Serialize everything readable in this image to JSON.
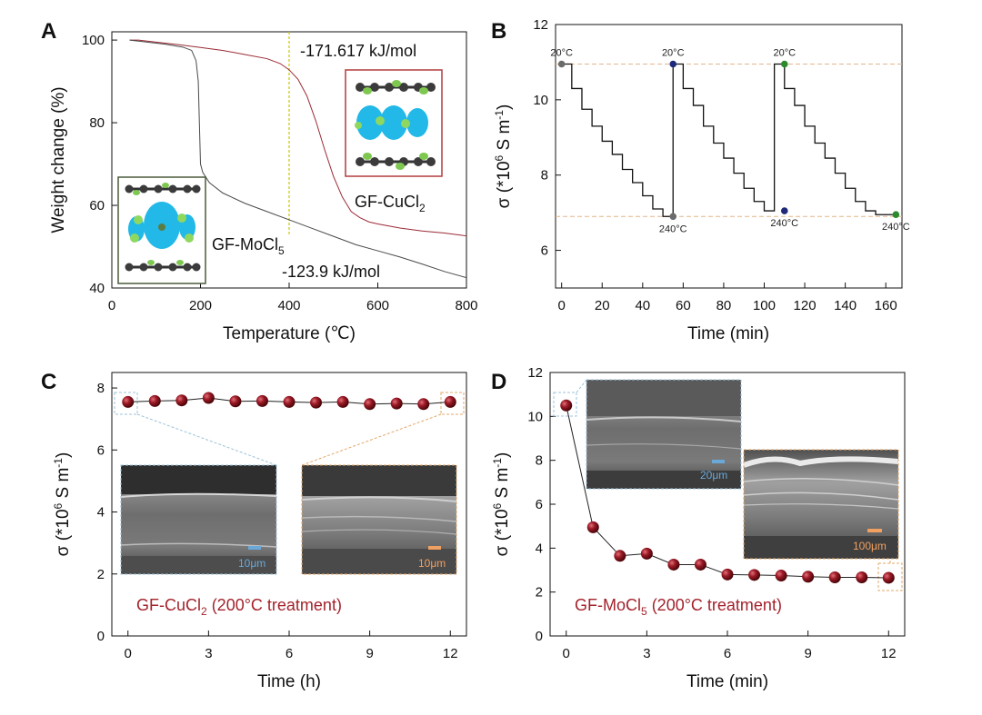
{
  "chart_data": [
    {
      "panel": "A",
      "type": "line",
      "xlabel": "Temperature (℃)",
      "ylabel": "Weight change (%)",
      "xlim": [
        0,
        800
      ],
      "ylim": [
        40,
        102
      ],
      "xticks": [
        0,
        200,
        400,
        600,
        800
      ],
      "yticks": [
        40,
        60,
        80,
        100
      ],
      "series": [
        {
          "name": "GF-CuCl2",
          "color": "#9b2a35",
          "x": [
            40,
            60,
            100,
            150,
            200,
            250,
            300,
            350,
            380,
            400,
            420,
            440,
            460,
            480,
            500,
            520,
            540,
            560,
            580,
            600,
            650,
            700,
            750,
            800
          ],
          "y": [
            100,
            100,
            99.5,
            98.9,
            98.2,
            97.5,
            96.5,
            95.5,
            94.3,
            92.8,
            90.5,
            86.5,
            80.5,
            73.5,
            67,
            62,
            58.5,
            57,
            56,
            55.5,
            54.5,
            53.8,
            53.3,
            52.6
          ]
        },
        {
          "name": "GF-MoCl5",
          "color": "#4a4a4a",
          "x": [
            40,
            80,
            120,
            160,
            180,
            190,
            195,
            200,
            205,
            220,
            250,
            300,
            350,
            400,
            450,
            500,
            550,
            600,
            650,
            700,
            750,
            800
          ],
          "y": [
            100,
            99.5,
            99,
            98.3,
            97.5,
            95,
            90,
            70,
            68,
            65.5,
            63,
            60.5,
            58.5,
            56.5,
            54.5,
            52.5,
            50.5,
            49,
            47.5,
            45.8,
            44,
            42.5
          ]
        }
      ],
      "vline": {
        "x": 400,
        "color": "#c8c800"
      },
      "annotations": {
        "cu_energy": "-171.617 kJ/mol",
        "mo_energy": "-123.9 kJ/mol",
        "cu_label_main": "GF-CuCl",
        "cu_label_sub": "2",
        "mo_label_main": "GF-MoCl",
        "mo_label_sub": "5"
      }
    },
    {
      "panel": "B",
      "type": "line",
      "xlabel": "Time (min)",
      "ylabel_main": "σ (*10",
      "ylabel_sup": "6",
      "ylabel_tail": " S m",
      "ylabel_sup2": "-1",
      "ylabel_end": ")",
      "xlim": [
        -3,
        168
      ],
      "ylim": [
        5,
        12
      ],
      "xticks": [
        0,
        20,
        40,
        60,
        80,
        100,
        120,
        140,
        160
      ],
      "yticks": [
        6,
        8,
        10,
        12
      ],
      "ref_lines": [
        {
          "y": 10.95,
          "color": "#e3b58c"
        },
        {
          "y": 6.9,
          "color": "#e3b58c"
        }
      ],
      "step_series": {
        "color": "#111111",
        "x": [
          0,
          5,
          5,
          10,
          10,
          15,
          15,
          20,
          20,
          25,
          25,
          30,
          30,
          35,
          35,
          40,
          40,
          45,
          45,
          50,
          50,
          55,
          55,
          60,
          60,
          65,
          65,
          70,
          70,
          75,
          75,
          80,
          80,
          85,
          85,
          90,
          90,
          95,
          95,
          100,
          100,
          105,
          105,
          110,
          110,
          115,
          115,
          120,
          120,
          125,
          125,
          130,
          130,
          135,
          135,
          140,
          140,
          145,
          145,
          150,
          150,
          155,
          155,
          160,
          160,
          165
        ],
        "y": [
          10.95,
          10.95,
          10.3,
          10.3,
          9.75,
          9.75,
          9.3,
          9.3,
          8.9,
          8.9,
          8.55,
          8.55,
          8.15,
          8.15,
          7.8,
          7.8,
          7.45,
          7.45,
          7.1,
          7.1,
          6.9,
          6.9,
          10.95,
          10.95,
          10.3,
          10.3,
          9.85,
          9.85,
          9.3,
          9.3,
          8.85,
          8.85,
          8.45,
          8.45,
          8.05,
          8.05,
          7.65,
          7.65,
          7.3,
          7.3,
          7.05,
          7.05,
          10.95,
          10.95,
          10.3,
          10.3,
          9.85,
          9.85,
          9.3,
          9.3,
          8.85,
          8.85,
          8.45,
          8.45,
          8.05,
          8.05,
          7.65,
          7.65,
          7.3,
          7.3,
          7.05,
          7.05,
          6.95,
          6.95,
          6.95,
          6.95
        ]
      },
      "markers": [
        {
          "x": 0,
          "y": 10.95,
          "color": "#6b6b6b",
          "label": "20°C"
        },
        {
          "x": 55,
          "y": 6.9,
          "color": "#6b6b6b",
          "label": "240°C"
        },
        {
          "x": 55,
          "y": 10.95,
          "color": "#1d2a7a",
          "label": "20°C"
        },
        {
          "x": 110,
          "y": 7.05,
          "color": "#1d2a7a",
          "label": "240°C"
        },
        {
          "x": 110,
          "y": 10.95,
          "color": "#2b8a2b",
          "label": "20°C"
        },
        {
          "x": 165,
          "y": 6.95,
          "color": "#2b8a2b",
          "label": "240°C"
        }
      ]
    },
    {
      "panel": "C",
      "type": "scatter",
      "xlabel": "Time (h)",
      "ylabel_main": "σ (*10",
      "ylabel_sup": "6",
      "ylabel_tail": " S m",
      "ylabel_sup2": "-1",
      "ylabel_end": ")",
      "xlim": [
        -0.6,
        12.6
      ],
      "ylim": [
        0,
        8.5
      ],
      "xticks": [
        0,
        3,
        6,
        9,
        12
      ],
      "yticks": [
        0,
        2,
        4,
        6,
        8
      ],
      "x": [
        0,
        1,
        2,
        3,
        4,
        5,
        6,
        7,
        8,
        9,
        10,
        11,
        12
      ],
      "y": [
        7.55,
        7.58,
        7.6,
        7.68,
        7.57,
        7.58,
        7.55,
        7.53,
        7.55,
        7.48,
        7.5,
        7.48,
        7.55
      ],
      "marker_color": "#8b1420",
      "annotation_main": "GF-CuCl",
      "annotation_sub": "2",
      "annotation_tail": " (200°C treatment)",
      "inset_scales": [
        "10μm",
        "10μm"
      ]
    },
    {
      "panel": "D",
      "type": "scatter",
      "xlabel": "Time (min)",
      "ylabel_main": "σ (*10",
      "ylabel_sup": "6",
      "ylabel_tail": " S m",
      "ylabel_sup2": "-1",
      "ylabel_end": ")",
      "xlim": [
        -0.6,
        12.6
      ],
      "ylim": [
        0,
        12
      ],
      "xticks": [
        0,
        3,
        6,
        9,
        12
      ],
      "yticks": [
        0,
        2,
        4,
        6,
        8,
        10,
        12
      ],
      "x": [
        0,
        1,
        2,
        3,
        4,
        5,
        6,
        7,
        8,
        9,
        10,
        11,
        12
      ],
      "y": [
        10.5,
        4.95,
        3.65,
        3.75,
        3.25,
        3.25,
        2.8,
        2.78,
        2.75,
        2.7,
        2.67,
        2.67,
        2.65
      ],
      "marker_color": "#8b1420",
      "annotation_main": "GF-MoCl",
      "annotation_sub": "5",
      "annotation_tail": " (200°C treatment)",
      "inset_scales": [
        "20μm",
        "100μm"
      ]
    }
  ],
  "panel_labels": [
    "A",
    "B",
    "C",
    "D"
  ]
}
